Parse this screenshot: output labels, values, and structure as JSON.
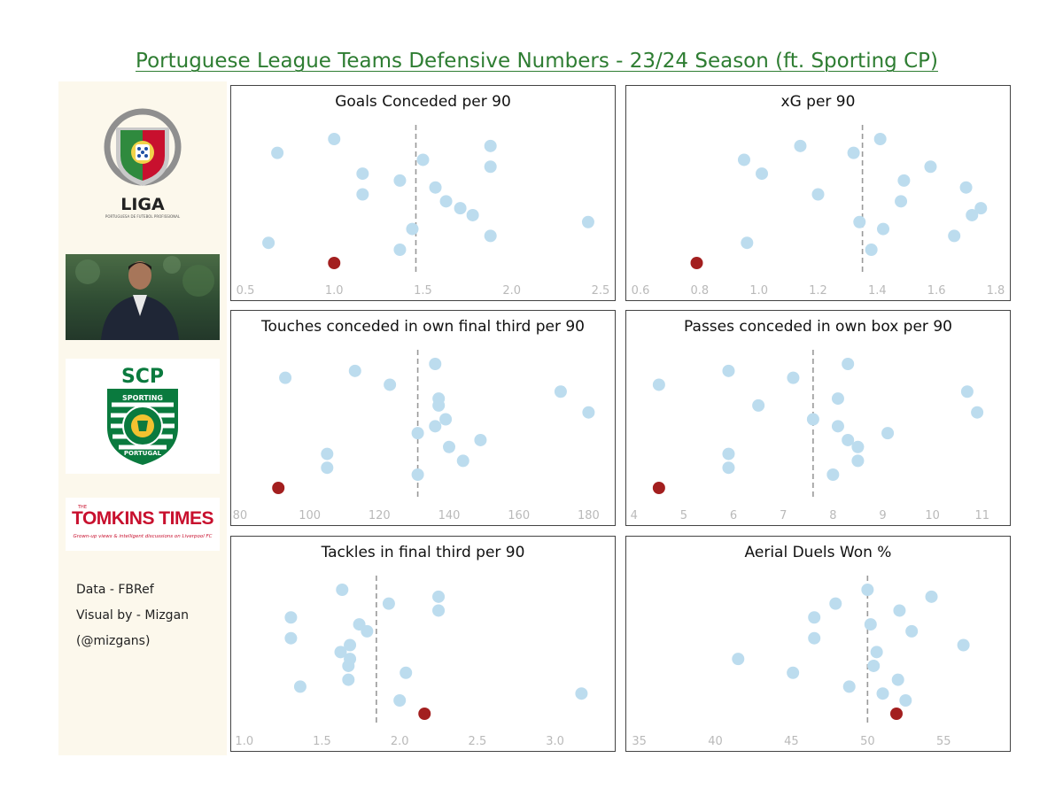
{
  "title": "Portuguese League Teams Defensive Numbers - 23/24 Season (ft. Sporting CP)",
  "sidebar": {
    "liga_logo": {
      "text": "LIGA",
      "subtext": "PORTUGUESA DE FUTEBOL PROFISSIONAL"
    },
    "coach_photo": "coach-photo",
    "sporting_logo": {
      "top": "SCP",
      "ring_top": "SPORTING",
      "ring_bottom": "PORTUGAL"
    },
    "tomkins_logo": {
      "small": "THE",
      "main": "TOMKINS TIMES",
      "tagline": "Grown-up views & intelligent discussions on Liverpool FC"
    },
    "credits": [
      "Data - FBRef",
      "Visual by - Mizgan",
      "(@mizgans)"
    ]
  },
  "colors": {
    "team": "#bcdcee",
    "highlight": "#a31f1f",
    "mean_line": "#999999",
    "title": "#2e7d32"
  },
  "chart_data": [
    {
      "type": "scatter",
      "title": "Goals Conceded per 90",
      "xlim": [
        0.45,
        2.55
      ],
      "ticks": [
        0.5,
        1.0,
        1.5,
        2.0,
        2.5
      ],
      "tick_labels": [
        "0.5",
        "1.0",
        "1.5",
        "2.0",
        "2.5"
      ],
      "mean": 1.46,
      "values": [
        1.0,
        1.88,
        0.68,
        1.5,
        1.88,
        1.16,
        1.37,
        1.57,
        1.16,
        1.63,
        1.71,
        1.78,
        2.43,
        1.44,
        1.88,
        0.63,
        1.37
      ],
      "highlight": 1.0
    },
    {
      "type": "scatter",
      "title": "xG per 90",
      "xlim": [
        0.57,
        1.83
      ],
      "ticks": [
        0.6,
        0.8,
        1.0,
        1.2,
        1.4,
        1.6,
        1.8
      ],
      "tick_labels": [
        "0.6",
        "0.8",
        "1.0",
        "1.2",
        "1.4",
        "1.6",
        "1.8"
      ],
      "mean": 1.35,
      "values": [
        1.41,
        1.14,
        1.32,
        0.95,
        1.58,
        1.01,
        1.49,
        1.7,
        1.2,
        1.48,
        1.75,
        1.72,
        1.34,
        1.42,
        1.66,
        0.96,
        1.38
      ],
      "highlight": 0.79
    },
    {
      "type": "scatter",
      "title": "Touches conceded in own final third per 90",
      "xlim": [
        79,
        186
      ],
      "ticks": [
        80,
        100,
        120,
        140,
        160,
        180
      ],
      "tick_labels": [
        "80",
        "100",
        "120",
        "140",
        "160",
        "180"
      ],
      "mean": 131,
      "values": [
        136,
        113,
        93,
        123,
        172,
        137,
        137,
        180,
        139,
        136,
        131,
        149,
        140,
        105,
        144,
        105,
        131
      ],
      "highlight": 91
    },
    {
      "type": "scatter",
      "title": "Passes conceded in own box per 90",
      "xlim": [
        3.95,
        11.45
      ],
      "ticks": [
        4,
        5,
        6,
        7,
        8,
        9,
        10,
        11
      ],
      "tick_labels": [
        "4",
        "5",
        "6",
        "7",
        "8",
        "9",
        "10",
        "11"
      ],
      "mean": 7.6,
      "values": [
        8.3,
        5.9,
        7.2,
        4.5,
        10.7,
        8.1,
        6.5,
        10.9,
        7.6,
        8.1,
        9.1,
        8.3,
        8.5,
        5.9,
        8.5,
        5.9,
        8.0
      ],
      "highlight": 4.5
    },
    {
      "type": "scatter",
      "title": "Tackles in final third per 90",
      "xlim": [
        0.95,
        3.35
      ],
      "ticks": [
        1.0,
        1.5,
        2.0,
        2.5,
        3.0
      ],
      "tick_labels": [
        "1.0",
        "1.5",
        "2.0",
        "2.5",
        "3.0"
      ],
      "mean": 1.85,
      "values": [
        1.63,
        2.25,
        1.93,
        2.25,
        1.3,
        1.74,
        1.79,
        1.3,
        1.68,
        1.62,
        1.68,
        1.67,
        2.04,
        1.67,
        1.36,
        3.17,
        2.0
      ],
      "highlight": 2.16
    },
    {
      "type": "scatter",
      "title": "Aerial Duels Won %",
      "xlim": [
        34.5,
        59
      ],
      "ticks": [
        35,
        40,
        45,
        50,
        55
      ],
      "tick_labels": [
        "35",
        "40",
        "45",
        "50",
        "55"
      ],
      "mean": 50,
      "values": [
        50,
        54.2,
        47.9,
        52.1,
        46.5,
        50.2,
        52.9,
        46.5,
        56.3,
        50.6,
        41.5,
        50.4,
        45.1,
        52.0,
        48.8,
        51.0,
        52.5
      ],
      "highlight": 51.9
    }
  ]
}
